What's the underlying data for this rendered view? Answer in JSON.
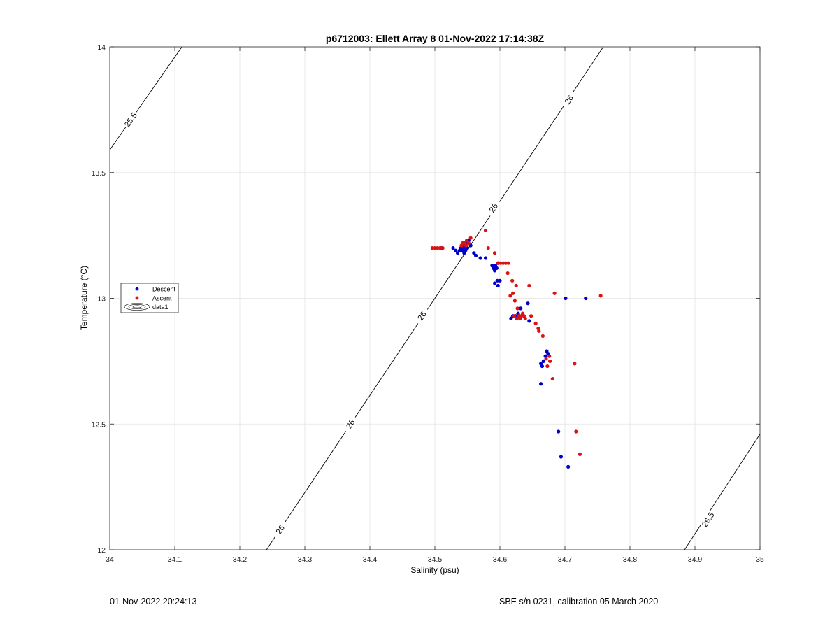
{
  "footer": {
    "timestamp": "01-Nov-2022 20:24:13",
    "instrument": "SBE s/n 0231, calibration 05 March 2020"
  },
  "colors": {
    "descent": "#0000cc",
    "ascent": "#dd1111",
    "grid": "#e3e3e3",
    "contour": "#000000"
  },
  "chart_data": {
    "type": "scatter",
    "title": "p6712003: Ellett Array 8 01-Nov-2022 17:14:38Z",
    "xlabel": "Salinity (psu)",
    "ylabel": "Temperature (°C)",
    "xlim": [
      34,
      35
    ],
    "ylim": [
      12,
      14
    ],
    "xticks": [
      "34",
      "34.1",
      "34.2",
      "34.3",
      "34.4",
      "34.5",
      "34.6",
      "34.7",
      "34.8",
      "34.9",
      "35"
    ],
    "yticks": [
      "12",
      "12.5",
      "13",
      "13.5",
      "14"
    ],
    "grid": true,
    "legend": {
      "placement": "west",
      "entries": [
        "Descent",
        "Ascent",
        "data1"
      ]
    },
    "contours": [
      {
        "label": "25.5",
        "points": [
          [
            34.0,
            13.59
          ],
          [
            34.111,
            14.0
          ]
        ],
        "labels_at": [
          [
            34.032,
            13.71
          ]
        ]
      },
      {
        "label": "26",
        "points": [
          [
            34.241,
            12.0
          ],
          [
            34.759,
            14.0
          ]
        ],
        "labels_at": [
          [
            34.262,
            12.08
          ],
          [
            34.37,
            12.5
          ],
          [
            34.48,
            12.93
          ],
          [
            34.59,
            13.36
          ],
          [
            34.706,
            13.79
          ]
        ]
      },
      {
        "label": "26.5",
        "points": [
          [
            34.884,
            12.0
          ],
          [
            35.0,
            12.46
          ]
        ],
        "labels_at": [
          [
            34.92,
            12.12
          ]
        ]
      }
    ],
    "series": [
      {
        "name": "Descent",
        "points": [
          [
            34.51,
            13.2
          ],
          [
            34.528,
            13.2
          ],
          [
            34.532,
            13.19
          ],
          [
            34.535,
            13.18
          ],
          [
            34.538,
            13.19
          ],
          [
            34.54,
            13.2
          ],
          [
            34.541,
            13.21
          ],
          [
            34.542,
            13.19
          ],
          [
            34.543,
            13.22
          ],
          [
            34.544,
            13.2
          ],
          [
            34.545,
            13.18
          ],
          [
            34.546,
            13.21
          ],
          [
            34.547,
            13.19
          ],
          [
            34.548,
            13.2
          ],
          [
            34.549,
            13.22
          ],
          [
            34.55,
            13.2
          ],
          [
            34.552,
            13.23
          ],
          [
            34.555,
            13.21
          ],
          [
            34.56,
            13.18
          ],
          [
            34.563,
            13.17
          ],
          [
            34.57,
            13.16
          ],
          [
            34.578,
            13.16
          ],
          [
            34.588,
            13.13
          ],
          [
            34.59,
            13.12
          ],
          [
            34.592,
            13.11
          ],
          [
            34.593,
            13.13
          ],
          [
            34.595,
            13.12
          ],
          [
            34.597,
            13.14
          ],
          [
            34.592,
            13.06
          ],
          [
            34.596,
            13.07
          ],
          [
            34.6,
            13.07
          ],
          [
            34.597,
            13.05
          ],
          [
            34.617,
            12.92
          ],
          [
            34.62,
            12.93
          ],
          [
            34.624,
            12.93
          ],
          [
            34.626,
            12.92
          ],
          [
            34.628,
            12.94
          ],
          [
            34.63,
            12.93
          ],
          [
            34.632,
            12.96
          ],
          [
            34.643,
            12.98
          ],
          [
            34.663,
            12.74
          ],
          [
            34.665,
            12.73
          ],
          [
            34.667,
            12.75
          ],
          [
            34.67,
            12.77
          ],
          [
            34.672,
            12.79
          ],
          [
            34.674,
            12.78
          ],
          [
            34.663,
            12.66
          ],
          [
            34.69,
            12.47
          ],
          [
            34.694,
            12.37
          ],
          [
            34.705,
            12.33
          ],
          [
            34.701,
            13.0
          ],
          [
            34.732,
            13.0
          ],
          [
            34.645,
            12.91
          ]
        ]
      },
      {
        "name": "Ascent",
        "points": [
          [
            34.496,
            13.2
          ],
          [
            34.5,
            13.2
          ],
          [
            34.504,
            13.2
          ],
          [
            34.508,
            13.2
          ],
          [
            34.512,
            13.2
          ],
          [
            34.541,
            13.21
          ],
          [
            34.543,
            13.22
          ],
          [
            34.546,
            13.22
          ],
          [
            34.549,
            13.23
          ],
          [
            34.552,
            13.22
          ],
          [
            34.555,
            13.24
          ],
          [
            34.548,
            13.21
          ],
          [
            34.578,
            13.27
          ],
          [
            34.582,
            13.2
          ],
          [
            34.592,
            13.18
          ],
          [
            34.597,
            13.14
          ],
          [
            34.601,
            13.14
          ],
          [
            34.605,
            13.14
          ],
          [
            34.609,
            13.14
          ],
          [
            34.613,
            13.14
          ],
          [
            34.612,
            13.1
          ],
          [
            34.619,
            13.07
          ],
          [
            34.625,
            13.05
          ],
          [
            34.616,
            13.01
          ],
          [
            34.62,
            13.02
          ],
          [
            34.623,
            12.99
          ],
          [
            34.627,
            12.96
          ],
          [
            34.622,
            12.93
          ],
          [
            34.626,
            12.92
          ],
          [
            34.629,
            12.93
          ],
          [
            34.631,
            12.92
          ],
          [
            34.633,
            12.93
          ],
          [
            34.635,
            12.94
          ],
          [
            34.637,
            12.93
          ],
          [
            34.639,
            12.92
          ],
          [
            34.645,
            13.05
          ],
          [
            34.648,
            12.93
          ],
          [
            34.655,
            12.9
          ],
          [
            34.659,
            12.88
          ],
          [
            34.66,
            12.87
          ],
          [
            34.666,
            12.85
          ],
          [
            34.671,
            12.76
          ],
          [
            34.673,
            12.73
          ],
          [
            34.676,
            12.77
          ],
          [
            34.677,
            12.75
          ],
          [
            34.681,
            12.68
          ],
          [
            34.684,
            13.02
          ],
          [
            34.715,
            12.74
          ],
          [
            34.717,
            12.47
          ],
          [
            34.723,
            12.38
          ],
          [
            34.755,
            13.01
          ]
        ]
      }
    ]
  }
}
